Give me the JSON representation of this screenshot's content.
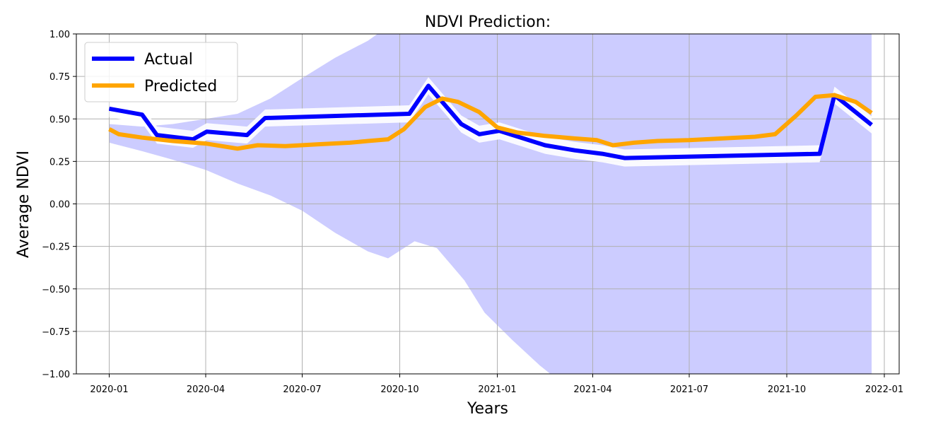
{
  "chart_data": {
    "type": "line",
    "title": "NDVI Prediction:",
    "xlabel": "Years",
    "ylabel": "Average NDVI",
    "xlim": [
      "2019-12-01",
      "2022-01-15"
    ],
    "ylim": [
      -1.0,
      1.0
    ],
    "grid": true,
    "legend_position": "top-left",
    "x_ticks": [
      "2020-01",
      "2020-04",
      "2020-07",
      "2020-10",
      "2021-01",
      "2021-04",
      "2021-07",
      "2021-10",
      "2022-01"
    ],
    "y_ticks": [
      "1.00",
      "0.75",
      "0.50",
      "0.25",
      "0.00",
      "−0.25",
      "−0.50",
      "−0.75",
      "−1.00"
    ],
    "y_tick_values": [
      1.0,
      0.75,
      0.5,
      0.25,
      0.0,
      -0.25,
      -0.5,
      -0.75,
      -1.0
    ],
    "series": [
      {
        "name": "Actual",
        "color": "#0000ff",
        "points": [
          [
            "2020-01-01",
            0.56
          ],
          [
            "2020-02-01",
            0.525
          ],
          [
            "2020-02-15",
            0.405
          ],
          [
            "2020-03-20",
            0.38
          ],
          [
            "2020-04-02",
            0.425
          ],
          [
            "2020-05-10",
            0.405
          ],
          [
            "2020-05-27",
            0.505
          ],
          [
            "2020-10-10",
            0.53
          ],
          [
            "2020-10-28",
            0.695
          ],
          [
            "2020-11-28",
            0.47
          ],
          [
            "2020-12-15",
            0.41
          ],
          [
            "2021-01-03",
            0.43
          ],
          [
            "2021-02-15",
            0.345
          ],
          [
            "2021-03-15",
            0.315
          ],
          [
            "2021-04-10",
            0.295
          ],
          [
            "2021-05-01",
            0.27
          ],
          [
            "2021-11-01",
            0.295
          ],
          [
            "2021-11-15",
            0.64
          ],
          [
            "2021-12-20",
            0.465
          ]
        ]
      },
      {
        "name": "Predicted",
        "color": "#ffa500",
        "points": [
          [
            "2020-01-01",
            0.44
          ],
          [
            "2020-01-10",
            0.41
          ],
          [
            "2020-02-01",
            0.39
          ],
          [
            "2020-03-01",
            0.37
          ],
          [
            "2020-04-01",
            0.355
          ],
          [
            "2020-05-01",
            0.325
          ],
          [
            "2020-05-20",
            0.345
          ],
          [
            "2020-06-15",
            0.34
          ],
          [
            "2020-07-15",
            0.35
          ],
          [
            "2020-08-15",
            0.36
          ],
          [
            "2020-09-01",
            0.37
          ],
          [
            "2020-09-20",
            0.38
          ],
          [
            "2020-10-05",
            0.44
          ],
          [
            "2020-10-25",
            0.57
          ],
          [
            "2020-11-10",
            0.62
          ],
          [
            "2020-11-25",
            0.6
          ],
          [
            "2020-12-15",
            0.54
          ],
          [
            "2021-01-01",
            0.45
          ],
          [
            "2021-01-20",
            0.42
          ],
          [
            "2021-02-15",
            0.4
          ],
          [
            "2021-03-15",
            0.385
          ],
          [
            "2021-04-05",
            0.375
          ],
          [
            "2021-04-20",
            0.345
          ],
          [
            "2021-05-10",
            0.36
          ],
          [
            "2021-06-01",
            0.37
          ],
          [
            "2021-07-01",
            0.375
          ],
          [
            "2021-08-01",
            0.385
          ],
          [
            "2021-09-01",
            0.395
          ],
          [
            "2021-09-20",
            0.41
          ],
          [
            "2021-10-10",
            0.52
          ],
          [
            "2021-10-28",
            0.63
          ],
          [
            "2021-11-15",
            0.64
          ],
          [
            "2021-12-05",
            0.6
          ],
          [
            "2021-12-20",
            0.535
          ]
        ]
      }
    ],
    "actual_band": {
      "color": "#ffffff",
      "width": 0.05
    },
    "prediction_interval": {
      "color": "#ccccff",
      "upper": [
        [
          "2020-01-01",
          0.47
        ],
        [
          "2020-02-01",
          0.455
        ],
        [
          "2020-03-01",
          0.47
        ],
        [
          "2020-04-01",
          0.5
        ],
        [
          "2020-05-01",
          0.53
        ],
        [
          "2020-06-01",
          0.62
        ],
        [
          "2020-07-01",
          0.74
        ],
        [
          "2020-08-01",
          0.86
        ],
        [
          "2020-09-01",
          0.96
        ],
        [
          "2020-09-10",
          1.0
        ],
        [
          "2021-12-20",
          1.0
        ]
      ],
      "lower": [
        [
          "2020-01-01",
          0.36
        ],
        [
          "2020-02-01",
          0.31
        ],
        [
          "2020-03-01",
          0.26
        ],
        [
          "2020-04-01",
          0.2
        ],
        [
          "2020-05-01",
          0.12
        ],
        [
          "2020-06-01",
          0.05
        ],
        [
          "2020-07-01",
          -0.04
        ],
        [
          "2020-08-01",
          -0.17
        ],
        [
          "2020-09-01",
          -0.28
        ],
        [
          "2020-09-20",
          -0.32
        ],
        [
          "2020-10-15",
          -0.22
        ],
        [
          "2020-11-05",
          -0.26
        ],
        [
          "2020-12-01",
          -0.45
        ],
        [
          "2020-12-20",
          -0.64
        ],
        [
          "2021-01-15",
          -0.8
        ],
        [
          "2021-02-10",
          -0.95
        ],
        [
          "2021-02-20",
          -1.0
        ],
        [
          "2021-12-20",
          -1.0
        ]
      ]
    }
  }
}
